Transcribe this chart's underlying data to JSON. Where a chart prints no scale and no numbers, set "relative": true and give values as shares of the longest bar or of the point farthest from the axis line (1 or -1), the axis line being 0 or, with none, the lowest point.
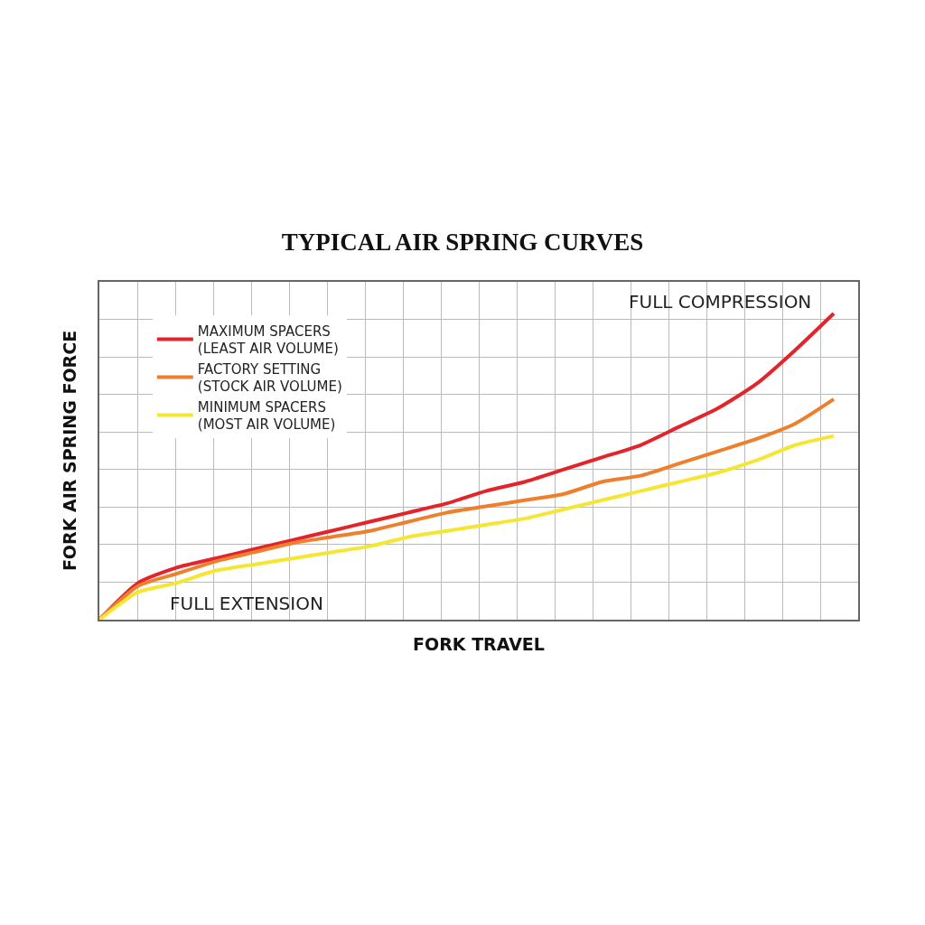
{
  "chart_data": {
    "type": "line",
    "title": "TYPICAL AIR SPRING CURVES",
    "xlabel": "FORK TRAVEL",
    "ylabel": "FORK AIR SPRING FORCE",
    "relative": true,
    "grid": true,
    "legend": "top left",
    "categories": [
      null,
      null,
      null,
      null,
      null,
      null,
      null,
      null,
      null,
      null,
      null,
      null,
      null,
      null,
      null,
      null,
      null,
      null,
      null,
      null
    ],
    "series": [
      {
        "name": "MAXIMUM SPACERS\n(LEAST AIR VOLUME)",
        "color": "#e3242b",
        "values": [
          0,
          0.12,
          0.17,
          0.2,
          0.23,
          0.26,
          0.29,
          0.32,
          0.35,
          0.38,
          0.42,
          0.45,
          0.49,
          0.53,
          0.57,
          0.63,
          0.69,
          0.77,
          0.88,
          1
        ]
      },
      {
        "name": "FACTORY SETTING\n(STOCK AIR VOLUME)",
        "color": "#ee7f2d",
        "values": [
          0,
          0.11,
          0.15,
          0.19,
          0.22,
          0.25,
          0.27,
          0.29,
          0.32,
          0.35,
          0.37,
          0.39,
          0.41,
          0.45,
          0.47,
          0.51,
          0.55,
          0.59,
          0.64,
          0.72
        ]
      },
      {
        "name": "MINIMUM SPACERS\n(MOST AIR VOLUME)",
        "color": "#f5e633",
        "values": [
          0,
          0.09,
          0.12,
          0.16,
          0.18,
          0.2,
          0.22,
          0.24,
          0.27,
          0.29,
          0.31,
          0.33,
          0.36,
          0.39,
          0.42,
          0.45,
          0.48,
          0.52,
          0.57,
          0.6
        ]
      }
    ],
    "annotations": [
      "FULL COMPRESSION",
      "FULL EXTENSION"
    ]
  }
}
